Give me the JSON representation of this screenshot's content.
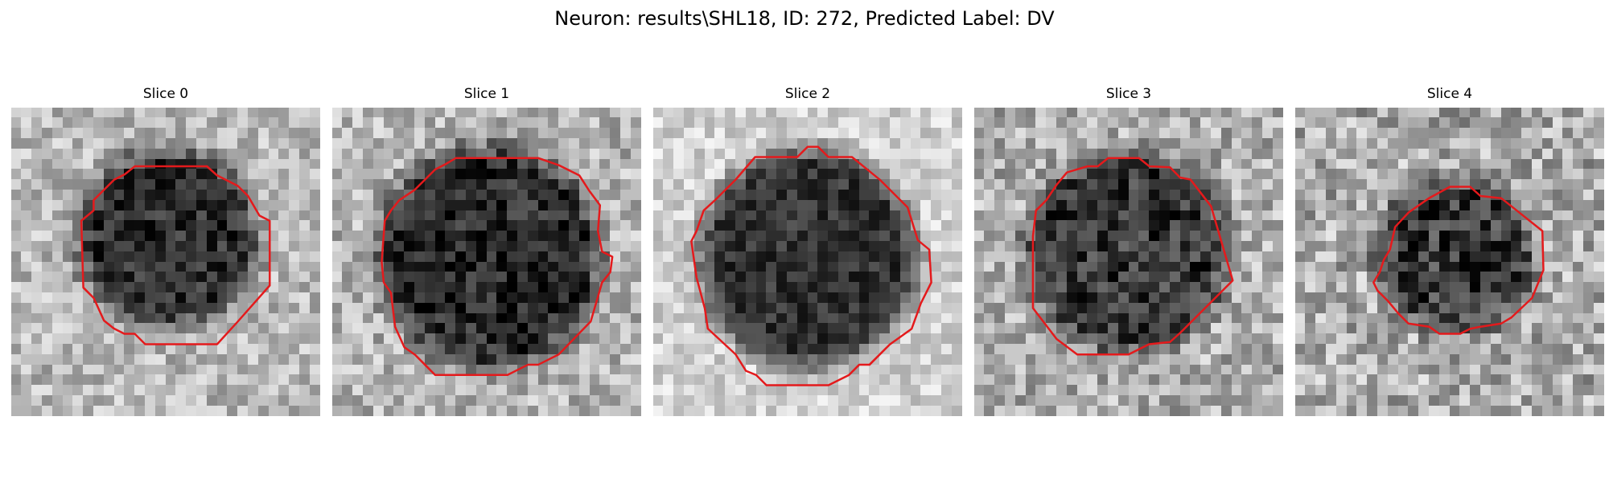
{
  "figure": {
    "title": "Neuron: results\\SHL18, ID: 272, Predicted Label: DV",
    "contour_color": "#e41a1c"
  },
  "panels": [
    {
      "title": "Slice 0",
      "grid_size": 30,
      "intensity": {
        "cell_dark": 0.18,
        "background": 0.72,
        "noise": 0.18
      },
      "cell_center": [
        15.2,
        12.7
      ],
      "cell_radius": 8.7,
      "contour": [
        [
          12,
          5.7
        ],
        [
          19,
          5.7
        ],
        [
          20,
          6.6
        ],
        [
          22,
          7.6
        ],
        [
          23,
          8.6
        ],
        [
          24.1,
          10.5
        ],
        [
          25.1,
          11
        ],
        [
          25.1,
          17.3
        ],
        [
          22,
          20.8
        ],
        [
          20,
          23
        ],
        [
          13,
          23
        ],
        [
          12,
          22
        ],
        [
          11,
          22
        ],
        [
          10,
          21.5
        ],
        [
          9,
          20.7
        ],
        [
          8,
          18.5
        ],
        [
          7,
          17.5
        ],
        [
          6.8,
          11
        ],
        [
          8,
          10
        ],
        [
          8,
          9
        ],
        [
          9,
          8
        ],
        [
          10,
          7
        ],
        [
          11,
          6.5
        ]
      ]
    },
    {
      "title": "Slice 1",
      "grid_size": 30,
      "intensity": {
        "cell_dark": 0.15,
        "background": 0.7,
        "noise": 0.2
      },
      "cell_center": [
        15.3,
        14.6
      ],
      "cell_radius": 10.8,
      "contour": [
        [
          11,
          5.5
        ],
        [
          12,
          4.9
        ],
        [
          20,
          4.9
        ],
        [
          22,
          5.6
        ],
        [
          24,
          6.6
        ],
        [
          24.9,
          8
        ],
        [
          26,
          9.5
        ],
        [
          25.8,
          12
        ],
        [
          26.2,
          14
        ],
        [
          27.2,
          14.5
        ],
        [
          27,
          16
        ],
        [
          26.2,
          17
        ],
        [
          25.1,
          20.8
        ],
        [
          22,
          24
        ],
        [
          20,
          25
        ],
        [
          19,
          25
        ],
        [
          17,
          26
        ],
        [
          10,
          26
        ],
        [
          9,
          25
        ],
        [
          8,
          24
        ],
        [
          7,
          23.3
        ],
        [
          6.1,
          21.3
        ],
        [
          5.7,
          18
        ],
        [
          5,
          17
        ],
        [
          4.8,
          15
        ],
        [
          5.1,
          11
        ],
        [
          5.7,
          10
        ],
        [
          6.5,
          9
        ],
        [
          8,
          8
        ],
        [
          10,
          6
        ]
      ]
    },
    {
      "title": "Slice 2",
      "grid_size": 30,
      "intensity": {
        "cell_dark": 0.2,
        "background": 0.82,
        "noise": 0.14
      },
      "cell_center": [
        15.1,
        14.7
      ],
      "cell_radius": 10.6,
      "contour": [
        [
          9.9,
          4.8
        ],
        [
          14,
          4.8
        ],
        [
          15,
          3.8
        ],
        [
          16,
          3.8
        ],
        [
          17,
          4.8
        ],
        [
          19.3,
          4.8
        ],
        [
          22,
          7
        ],
        [
          24.7,
          9.7
        ],
        [
          25.7,
          12.9
        ],
        [
          26.8,
          13.8
        ],
        [
          27,
          17
        ],
        [
          26,
          19
        ],
        [
          25.1,
          21.5
        ],
        [
          23,
          23
        ],
        [
          21,
          25
        ],
        [
          20,
          25
        ],
        [
          19,
          26
        ],
        [
          17,
          27
        ],
        [
          11,
          27
        ],
        [
          10,
          26
        ],
        [
          9,
          25.6
        ],
        [
          8,
          24
        ],
        [
          5.3,
          21.5
        ],
        [
          5,
          19.5
        ],
        [
          4.2,
          16.5
        ],
        [
          3.7,
          13
        ],
        [
          4.2,
          12
        ],
        [
          4.9,
          10
        ],
        [
          6,
          9
        ],
        [
          7,
          8
        ],
        [
          8,
          7
        ]
      ]
    },
    {
      "title": "Slice 3",
      "grid_size": 30,
      "intensity": {
        "cell_dark": 0.22,
        "background": 0.68,
        "noise": 0.22
      },
      "cell_center": [
        14.9,
        14
      ],
      "cell_radius": 9.9,
      "contour": [
        [
          9,
          6.3
        ],
        [
          11,
          5.7
        ],
        [
          12,
          5.7
        ],
        [
          13,
          4.9
        ],
        [
          16,
          4.9
        ],
        [
          17,
          5.7
        ],
        [
          19,
          5.8
        ],
        [
          20,
          6.8
        ],
        [
          21,
          7
        ],
        [
          23,
          9.6
        ],
        [
          25.1,
          16.8
        ],
        [
          20,
          21.9
        ],
        [
          19,
          22.8
        ],
        [
          17,
          23
        ],
        [
          15,
          24
        ],
        [
          10,
          24
        ],
        [
          8,
          22.5
        ],
        [
          7,
          21.2
        ],
        [
          5.7,
          19.5
        ],
        [
          5.7,
          12.5
        ],
        [
          6,
          10
        ],
        [
          7,
          9
        ],
        [
          8,
          7.5
        ]
      ]
    },
    {
      "title": "Slice 4",
      "grid_size": 30,
      "intensity": {
        "cell_dark": 0.22,
        "background": 0.67,
        "noise": 0.24
      },
      "cell_center": [
        15.5,
        14.4
      ],
      "cell_radius": 7.6,
      "contour": [
        [
          13,
          8.8
        ],
        [
          15,
          7.7
        ],
        [
          17,
          7.7
        ],
        [
          18,
          8.6
        ],
        [
          20,
          8.8
        ],
        [
          24,
          12
        ],
        [
          24.1,
          15.8
        ],
        [
          23,
          18.5
        ],
        [
          21,
          20.4
        ],
        [
          20,
          21
        ],
        [
          18,
          21.3
        ],
        [
          17,
          21.5
        ],
        [
          16,
          22
        ],
        [
          14,
          22
        ],
        [
          13,
          21.3
        ],
        [
          11,
          21
        ],
        [
          10,
          20
        ],
        [
          9,
          18.8
        ],
        [
          8,
          17.8
        ],
        [
          7.6,
          17
        ],
        [
          8.2,
          16
        ],
        [
          8.6,
          14.8
        ],
        [
          9.2,
          13.8
        ],
        [
          9.7,
          11.6
        ],
        [
          11,
          10.2
        ]
      ]
    }
  ]
}
